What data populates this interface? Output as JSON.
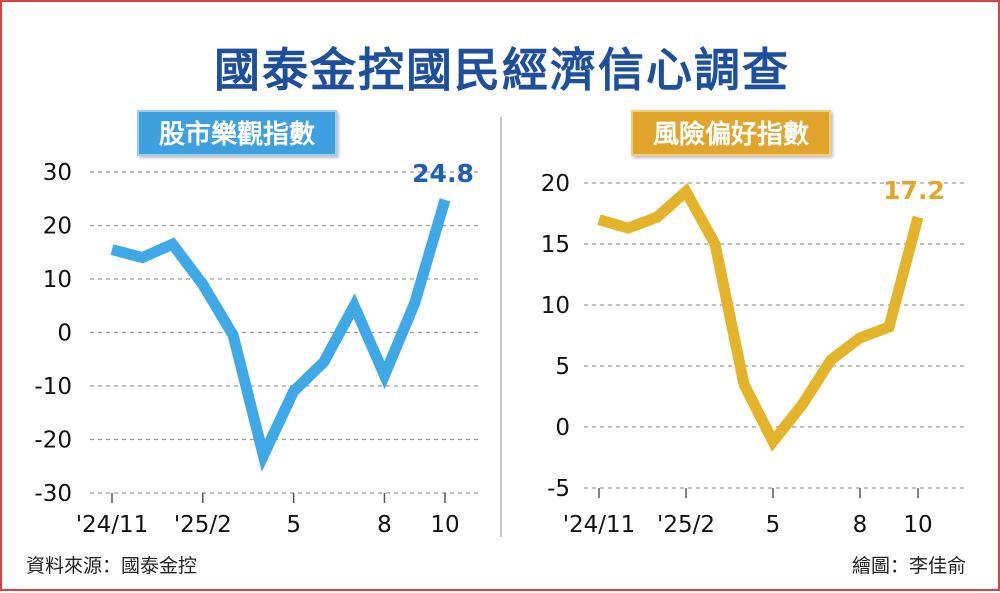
{
  "title": "國泰金控國民經濟信心調查",
  "source": "資料來源：國泰金控",
  "credit": "繪圖：李佳俞",
  "chart_data": [
    {
      "type": "line",
      "title": "股市樂觀指數",
      "color": "#3fa8e6",
      "label_color": "#1d5fb0",
      "badge_color": "#3fa0e0",
      "x_ticks": [
        "'24/11",
        "'25/2",
        "5",
        "8",
        "10"
      ],
      "x_tick_index": [
        0,
        3,
        6,
        9,
        11
      ],
      "x": [
        "2024-11",
        "2024-12",
        "2025-01",
        "2025-02",
        "2025-03",
        "2025-04",
        "2025-05",
        "2025-06",
        "2025-07",
        "2025-08",
        "2025-09",
        "2025-10"
      ],
      "values": [
        15.5,
        14,
        16.5,
        9,
        -0.5,
        -23,
        -11,
        -5.5,
        5,
        -8,
        5.5,
        24.8
      ],
      "ylim": [
        -30,
        30
      ],
      "y_ticks": [
        30,
        20,
        10,
        0,
        -10,
        -20,
        -30
      ],
      "end_label": "24.8",
      "grid": "dashed horizontal"
    },
    {
      "type": "line",
      "title": "風險偏好指數",
      "color": "#e3b42a",
      "label_color": "#e0a52a",
      "badge_color": "#e0a52a",
      "x_ticks": [
        "'24/11",
        "'25/2",
        "5",
        "8",
        "10"
      ],
      "x_tick_index": [
        0,
        3,
        6,
        9,
        11
      ],
      "x": [
        "2024-11",
        "2024-12",
        "2025-01",
        "2025-02",
        "2025-03",
        "2025-04",
        "2025-05",
        "2025-06",
        "2025-07",
        "2025-08",
        "2025-09",
        "2025-10"
      ],
      "values": [
        17,
        16.3,
        17.2,
        19.3,
        15,
        3.5,
        -1.2,
        1.8,
        5.5,
        7.3,
        8.2,
        17.2
      ],
      "ylim": [
        -5,
        20
      ],
      "y_ticks": [
        20,
        15,
        10,
        5,
        0,
        -5
      ],
      "end_label": "17.2",
      "grid": "dashed horizontal"
    }
  ]
}
